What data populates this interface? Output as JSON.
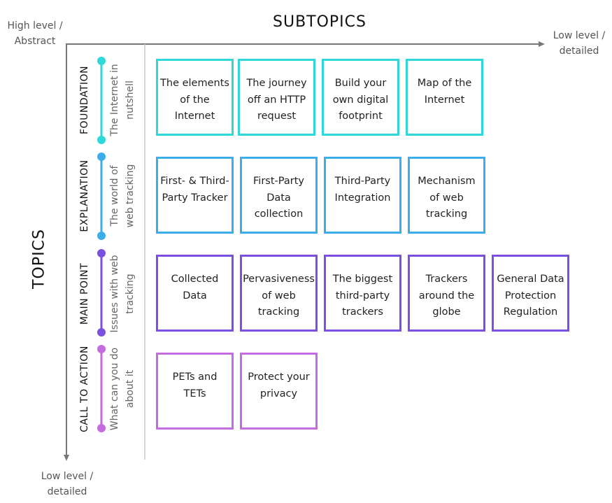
{
  "corners": {
    "top_left": [
      "High level /",
      "Abstract"
    ],
    "top_right": [
      "Low level /",
      "detailed"
    ],
    "bottom_left": [
      "Low level /",
      "detailed"
    ]
  },
  "axis_titles": {
    "horizontal": "SUBTOPICS",
    "vertical": "TOPICS"
  },
  "topics": [
    {
      "category": "FOUNDATION",
      "subtitle": [
        "The Internet in",
        "nutshell"
      ],
      "color": "#2ED8D8",
      "subtopics": [
        "The elements of the Internet",
        "The journey off an HTTP request",
        "Build your own digital footprint",
        "Map of the Internet"
      ]
    },
    {
      "category": "EXPLANATION",
      "subtitle": [
        "The world of",
        "web tracking"
      ],
      "color": "#3BAEE8",
      "subtopics": [
        "First- & Third-Party Tracker",
        "First-Party Data collection",
        "Third-Party Integration",
        "Mechanism of web tracking"
      ]
    },
    {
      "category": "MAIN POINT",
      "subtitle": [
        "Issues with web",
        "tracking"
      ],
      "color": "#7B4FE0",
      "subtopics": [
        "Collected Data",
        "Pervasiveness of web tracking",
        "The biggest third-party trackers",
        "Trackers around the globe",
        "General Data Protection Regulation"
      ]
    },
    {
      "category": "CALL TO ACTION",
      "subtitle": [
        "What can you do",
        "about it"
      ],
      "color": "#C46BE0",
      "subtopics": [
        "PETs and TETs",
        "Protect your privacy"
      ]
    }
  ]
}
